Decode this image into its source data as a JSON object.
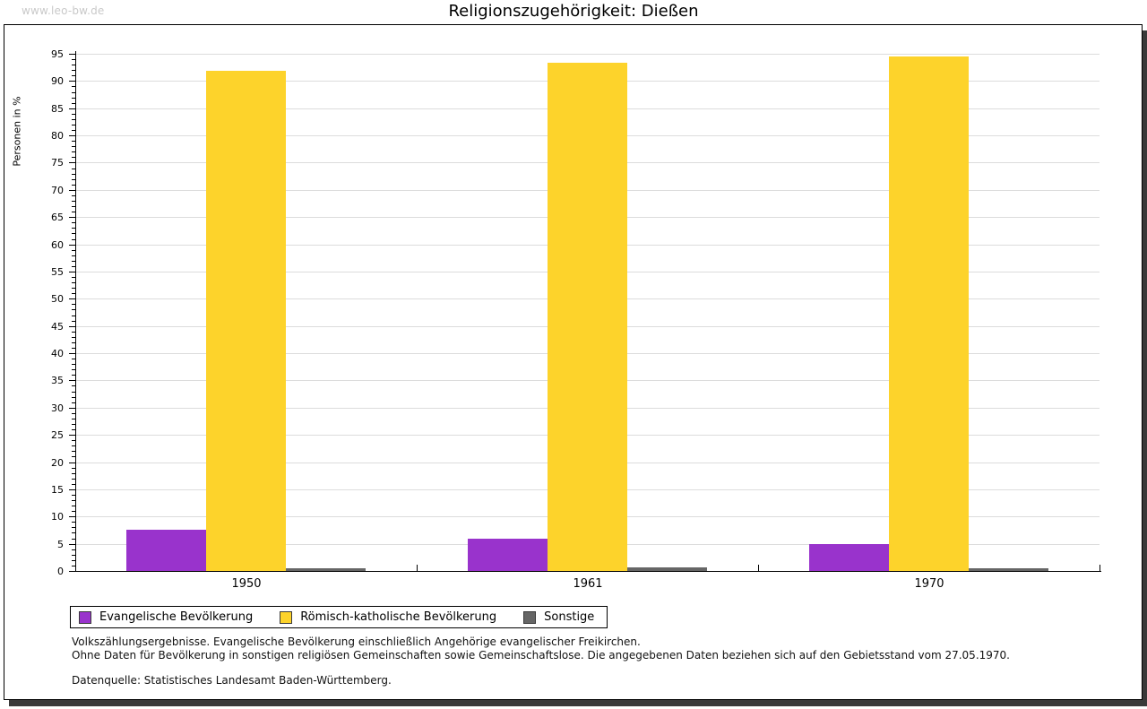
{
  "page": {
    "watermark": "www.leo-bw.de",
    "title": "Religionszugehörigkeit: Dießen"
  },
  "chart_data": {
    "type": "bar",
    "title": "Religionszugehörigkeit: Dießen",
    "categories": [
      "1950",
      "1961",
      "1970"
    ],
    "series": [
      {
        "name": "Evangelische Bevölkerung",
        "color": "#9933cc",
        "values": [
          7.6,
          6.0,
          5.0
        ]
      },
      {
        "name": "Römisch-katholische Bevölkerung",
        "color": "#fdd32b",
        "values": [
          91.8,
          93.4,
          94.5
        ]
      },
      {
        "name": "Sonstige",
        "color": "#666666",
        "values": [
          0.5,
          0.7,
          0.5
        ]
      }
    ],
    "xlabel": "",
    "ylabel": "Personen in %",
    "ylim": [
      0,
      95
    ],
    "ytick_step": 5,
    "yminor_step": 1,
    "grid": true,
    "gridline_color": "#dcdcdc",
    "legend_position": "bottom-left"
  },
  "footnotes": {
    "line1": "Volkszählungsergebnisse. Evangelische Bevölkerung einschließlich Angehörige evangelischer Freikirchen.",
    "line2": "Ohne Daten für Bevölkerung in sonstigen religiösen Gemeinschaften sowie Gemeinschaftslose. Die angegebenen Daten beziehen sich auf den Gebietsstand vom 27.05.1970.",
    "source": "Datenquelle: Statistisches Landesamt Baden-Württemberg."
  }
}
